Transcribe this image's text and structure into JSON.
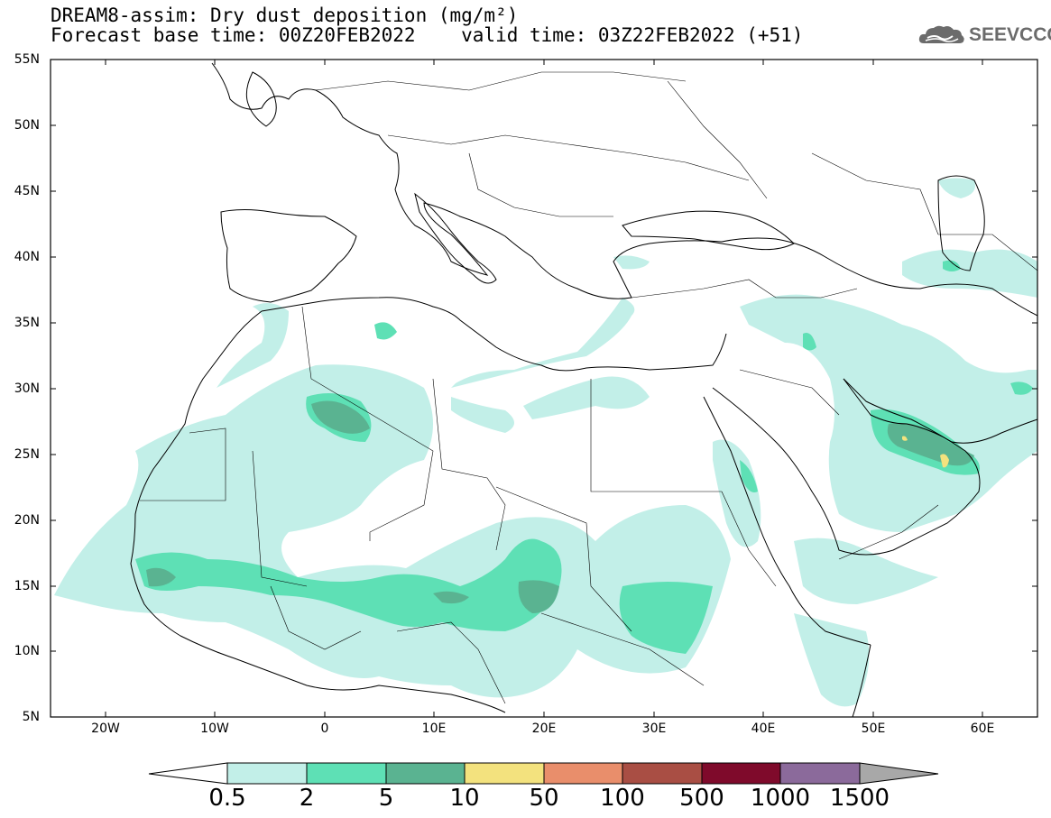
{
  "header": {
    "line1": "DREAM8-assim: Dry dust deposition (mg/m²)",
    "line2": "Forecast base time: 00Z20FEB2022    valid time: 03Z22FEB2022 (+51)"
  },
  "logo": {
    "text": "SEEVCCC",
    "icon": "cloud-icon"
  },
  "map": {
    "lon_range": [
      -25,
      65
    ],
    "lat_range": [
      5,
      55
    ],
    "lat_labels": [
      "55N",
      "50N",
      "45N",
      "40N",
      "35N",
      "30N",
      "25N",
      "20N",
      "15N",
      "10N",
      "5N"
    ],
    "lon_labels": [
      "20W",
      "10W",
      "0",
      "10E",
      "20E",
      "30E",
      "40E",
      "50E",
      "60E"
    ]
  },
  "colorbar": {
    "labels": [
      "0.5",
      "2",
      "5",
      "10",
      "50",
      "100",
      "500",
      "1000",
      "1500"
    ],
    "colors": [
      "#c2efe8",
      "#5ee0b5",
      "#5ab391",
      "#f3e27e",
      "#e98e6b",
      "#a94e44",
      "#7f0a2b",
      "#8b6a9b",
      "#a8a8a8"
    ]
  }
}
